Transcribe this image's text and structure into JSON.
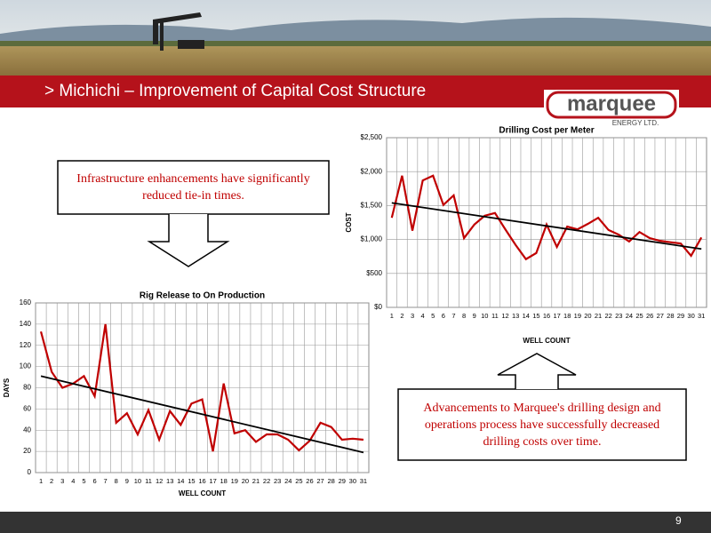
{
  "slide": {
    "title": "> Michichi – Improvement of Capital Cost Structure",
    "logo": "marquee",
    "logo_sub": "ENERGY LTD.",
    "callout_top": "Infrastructure enhancements have significantly reduced tie-in times.",
    "callout_bottom": "Advancements to Marquee's drilling design and operations process have successfully decreased drilling costs over time.",
    "page_number": "9"
  },
  "chart_data": [
    {
      "type": "line",
      "title": "Drilling Cost per Meter",
      "x_label": "WELL COUNT",
      "y_label": "COST",
      "categories": [
        1,
        2,
        3,
        4,
        5,
        6,
        7,
        8,
        9,
        10,
        11,
        12,
        13,
        14,
        15,
        16,
        17,
        18,
        19,
        20,
        21,
        22,
        23,
        24,
        25,
        26,
        27,
        28,
        29,
        30,
        31
      ],
      "values": [
        1320,
        1940,
        1130,
        1870,
        1940,
        1510,
        1650,
        1020,
        1220,
        1350,
        1390,
        1150,
        920,
        710,
        800,
        1220,
        890,
        1190,
        1150,
        1230,
        1320,
        1140,
        1070,
        970,
        1110,
        1020,
        980,
        960,
        940,
        760,
        1030
      ],
      "trend": [
        1540,
        860
      ],
      "color": "#c00000",
      "trend_color": "#000000",
      "ylim": [
        0,
        2500
      ],
      "yticks": [
        {
          "value": 0,
          "label": "$0"
        },
        {
          "value": 500,
          "label": "$500"
        },
        {
          "value": 1000,
          "label": "$1,000"
        },
        {
          "value": 1500,
          "label": "$1,500"
        },
        {
          "value": 2000,
          "label": "$2,000"
        },
        {
          "value": 2500,
          "label": "$2,500"
        }
      ],
      "grid": true
    },
    {
      "type": "line",
      "title": "Rig Release to On Production",
      "x_label": "WELL COUNT",
      "y_label": "DAYS",
      "categories": [
        1,
        2,
        3,
        4,
        5,
        6,
        7,
        8,
        9,
        10,
        11,
        12,
        13,
        14,
        15,
        16,
        17,
        18,
        19,
        20,
        21,
        22,
        23,
        24,
        25,
        26,
        27,
        28,
        29,
        30,
        31
      ],
      "values": [
        133,
        95,
        80,
        84,
        91,
        72,
        140,
        47,
        56,
        36,
        59,
        31,
        58,
        45,
        65,
        69,
        20,
        84,
        37,
        40,
        29,
        36,
        36,
        31,
        21,
        30,
        47,
        43,
        31,
        32,
        31
      ],
      "trend": [
        91,
        19
      ],
      "color": "#c00000",
      "trend_color": "#000000",
      "ylim": [
        0,
        160
      ],
      "yticks": [
        0,
        20,
        40,
        60,
        80,
        100,
        120,
        140,
        160
      ],
      "grid": true
    }
  ]
}
